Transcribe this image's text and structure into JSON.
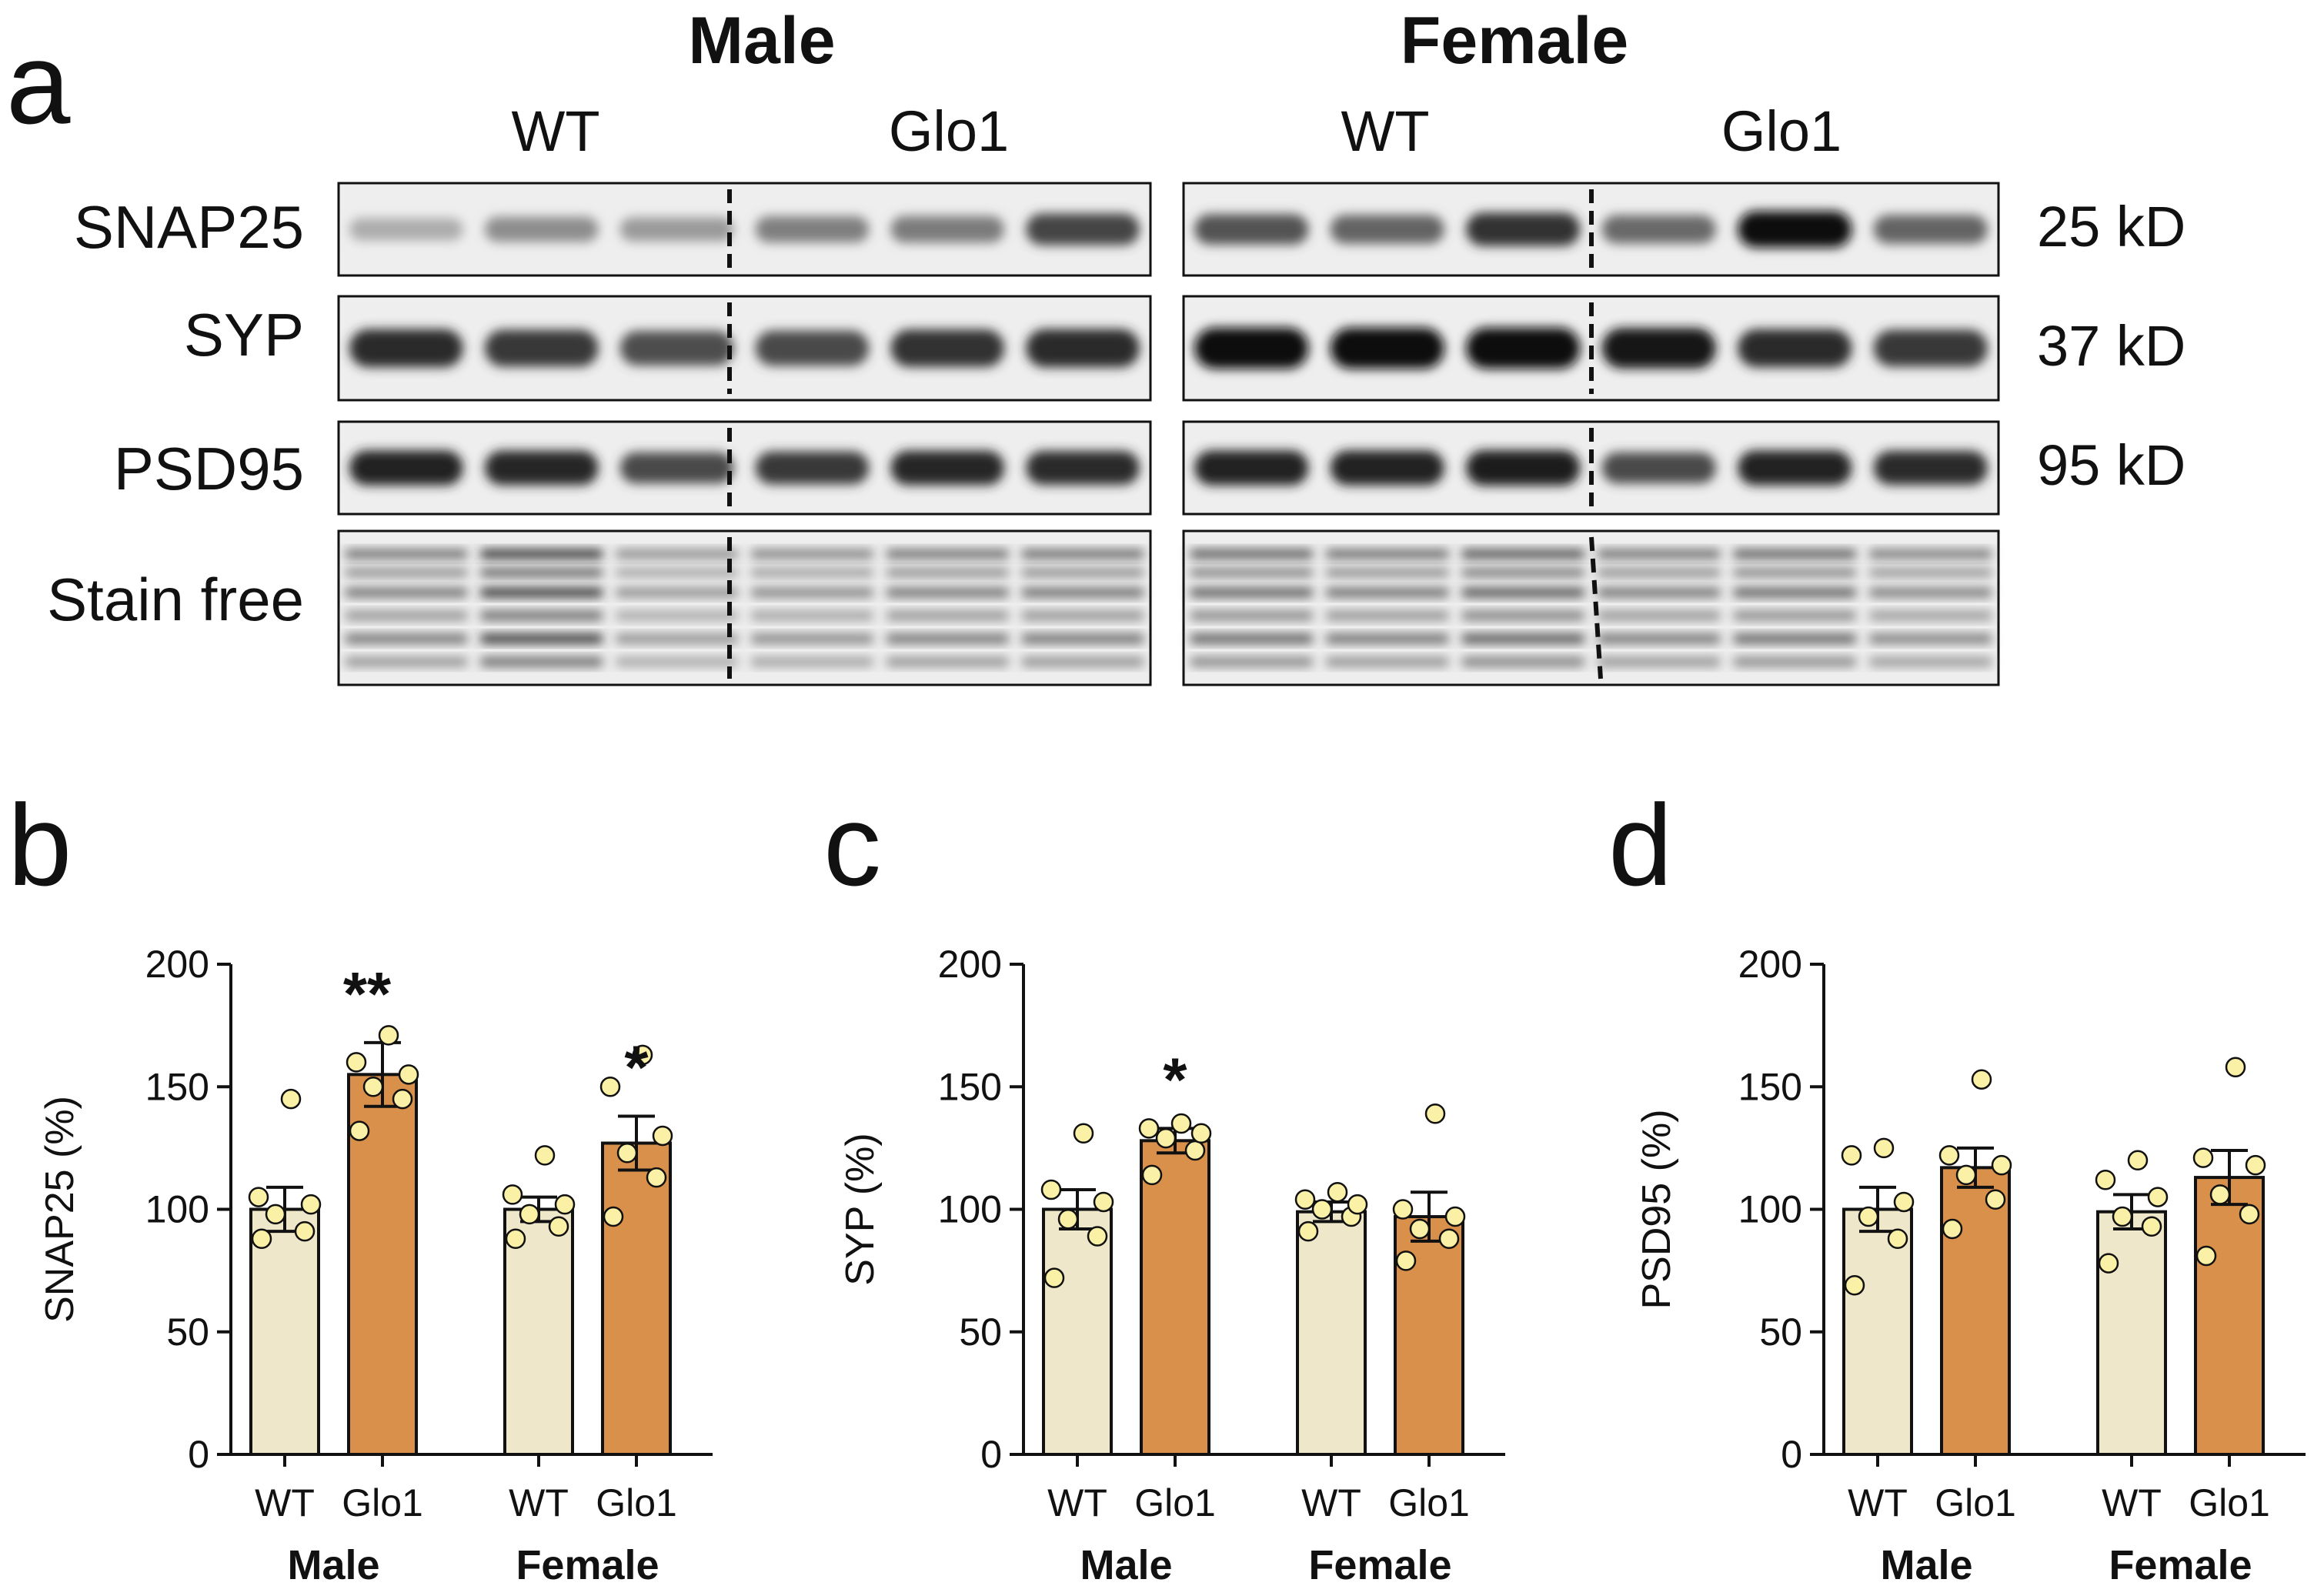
{
  "panel_a": {
    "letter": "a",
    "groups": [
      "Male",
      "Female"
    ],
    "genotypes": [
      "WT",
      "Glo1"
    ],
    "rows": [
      {
        "name": "SNAP25",
        "kd": "25 kD",
        "bands": [
          [
            0.28,
            0.42,
            0.36,
            0.48,
            0.5,
            0.74
          ],
          [
            0.68,
            0.6,
            0.82,
            0.58,
            0.98,
            0.6
          ]
        ]
      },
      {
        "name": "SYP",
        "kd": "37 kD",
        "bands": [
          [
            0.85,
            0.8,
            0.7,
            0.72,
            0.82,
            0.86
          ],
          [
            0.98,
            0.98,
            0.98,
            0.95,
            0.85,
            0.8
          ]
        ]
      },
      {
        "name": "PSD95",
        "kd": "95 kD",
        "bands": [
          [
            0.9,
            0.88,
            0.72,
            0.8,
            0.88,
            0.85
          ],
          [
            0.9,
            0.9,
            0.92,
            0.72,
            0.9,
            0.86
          ]
        ]
      },
      {
        "name": "Stain free",
        "kd": "",
        "bands": [
          [
            0.6,
            0.9,
            0.45,
            0.5,
            0.6,
            0.62
          ],
          [
            0.7,
            0.62,
            0.75,
            0.6,
            0.68,
            0.55
          ]
        ]
      }
    ]
  },
  "chart_data": [
    {
      "type": "bar",
      "letter": "b",
      "ylabel": "SNAP25 (%)",
      "ylim": [
        0,
        200
      ],
      "yticks": [
        0,
        50,
        100,
        150,
        200
      ],
      "categories": [
        "WT",
        "Glo1",
        "WT",
        "Glo1"
      ],
      "groups": [
        "Male",
        "Female"
      ],
      "colors": [
        "#efe7c9",
        "#d9904a"
      ],
      "values": [
        100,
        155,
        100,
        127
      ],
      "sem": [
        9,
        13,
        5,
        11
      ],
      "points": [
        [
          88,
          91,
          98,
          102,
          105,
          145
        ],
        [
          132,
          145,
          150,
          155,
          160,
          171
        ],
        [
          88,
          93,
          98,
          102,
          106,
          122
        ],
        [
          97,
          113,
          123,
          130,
          150,
          163
        ]
      ],
      "significance": [
        "",
        "**",
        "",
        "*"
      ]
    },
    {
      "type": "bar",
      "letter": "c",
      "ylabel": "SYP (%)",
      "ylim": [
        0,
        200
      ],
      "yticks": [
        0,
        50,
        100,
        150,
        200
      ],
      "categories": [
        "WT",
        "Glo1",
        "WT",
        "Glo1"
      ],
      "groups": [
        "Male",
        "Female"
      ],
      "colors": [
        "#efe7c9",
        "#d9904a"
      ],
      "values": [
        100,
        128,
        99,
        97
      ],
      "sem": [
        8,
        5,
        4,
        10
      ],
      "points": [
        [
          72,
          89,
          96,
          103,
          108,
          131
        ],
        [
          114,
          124,
          129,
          131,
          133,
          135
        ],
        [
          91,
          97,
          100,
          102,
          104,
          107
        ],
        [
          79,
          88,
          92,
          97,
          100,
          139
        ]
      ],
      "significance": [
        "",
        "*",
        "",
        ""
      ]
    },
    {
      "type": "bar",
      "letter": "d",
      "ylabel": "PSD95 (%)",
      "ylim": [
        0,
        200
      ],
      "yticks": [
        0,
        50,
        100,
        150,
        200
      ],
      "categories": [
        "WT",
        "Glo1",
        "WT",
        "Glo1"
      ],
      "groups": [
        "Male",
        "Female"
      ],
      "colors": [
        "#efe7c9",
        "#d9904a"
      ],
      "values": [
        100,
        117,
        99,
        113
      ],
      "sem": [
        9,
        8,
        7,
        11
      ],
      "points": [
        [
          69,
          88,
          97,
          103,
          122,
          125
        ],
        [
          92,
          104,
          114,
          118,
          122,
          153
        ],
        [
          78,
          93,
          97,
          105,
          112,
          120
        ],
        [
          81,
          98,
          106,
          118,
          121,
          158
        ]
      ],
      "significance": [
        "",
        "",
        "",
        ""
      ]
    }
  ]
}
